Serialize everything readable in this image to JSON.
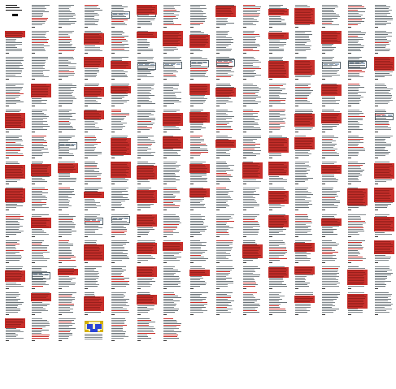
{
  "document": {
    "view": "page-thumbnail-grid",
    "columns": 15,
    "row_page_counts": [
      15,
      15,
      15,
      15,
      15,
      15,
      15,
      15,
      15,
      15,
      15,
      15,
      7
    ],
    "total_pages": 187,
    "highlight_color": "#c9302c",
    "text_color": "#6f777b",
    "cover_page": {
      "has_title_block": true,
      "has_logo": true
    },
    "pages_with_tables": [
      4,
      5,
      35,
      36,
      37,
      38,
      42,
      43,
      44,
      74,
      77,
      123,
      124,
      151
    ],
    "pages_with_figures": [
      183
    ],
    "heavily_highlighted_pages": [
      5,
      8,
      10,
      11,
      15,
      18,
      20,
      21,
      22,
      25,
      27,
      33,
      34,
      40,
      41,
      44,
      46,
      48,
      49,
      52,
      53,
      57,
      60,
      63,
      66,
      67,
      71,
      72,
      79,
      81,
      83,
      85,
      86,
      90,
      91,
      92,
      94,
      95,
      97,
      99,
      100,
      102,
      104,
      105,
      108,
      110,
      112,
      115,
      118,
      119,
      121,
      125,
      130,
      132,
      134,
      138,
      140,
      141,
      144,
      146,
      149,
      150,
      152,
      155,
      157,
      160,
      161,
      163,
      166,
      168,
      170,
      176,
      178,
      180
    ]
  }
}
